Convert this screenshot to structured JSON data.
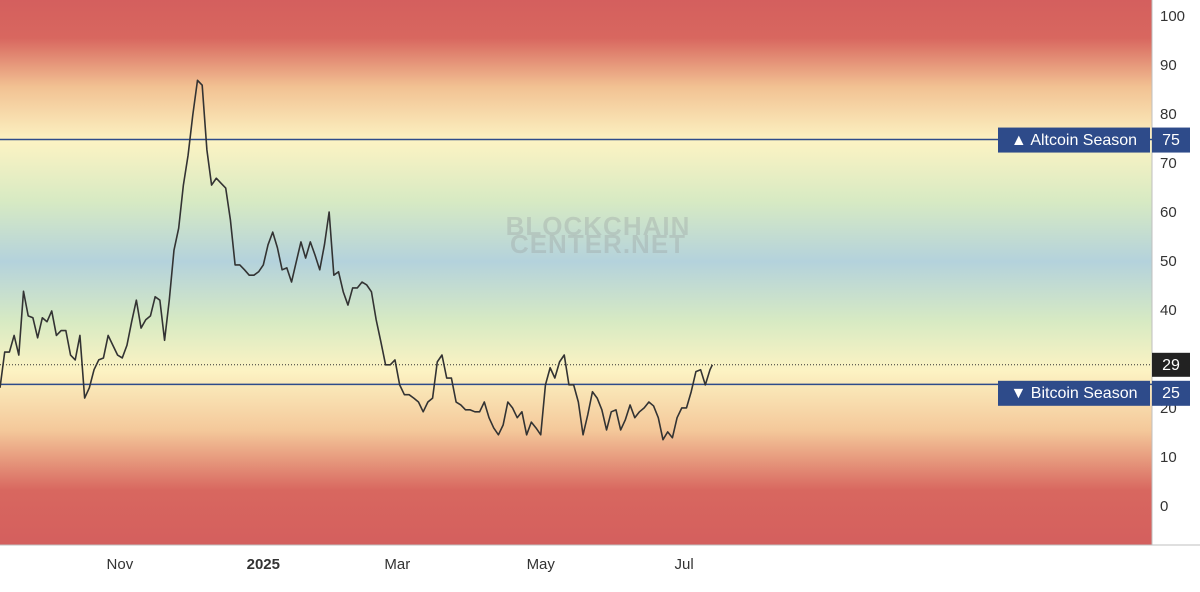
{
  "chart_data": {
    "type": "line",
    "watermark": [
      "BLOCKCHAIN",
      "CENTER.NET"
    ],
    "color": "#333333",
    "x": [
      0,
      2,
      4,
      6,
      8,
      10,
      12,
      14,
      16,
      18,
      20,
      22,
      24,
      26,
      28,
      30,
      32,
      34,
      36,
      38,
      40,
      42,
      44,
      46,
      48,
      50,
      52,
      54,
      56,
      58,
      60,
      62,
      64,
      66,
      68,
      70,
      72,
      74,
      76,
      78,
      80,
      82,
      84,
      86,
      88,
      90,
      92,
      94,
      96,
      98,
      100,
      102,
      104,
      106,
      108,
      110,
      112,
      114,
      116,
      118,
      120,
      122,
      124,
      126,
      128,
      130,
      132,
      134,
      136,
      138,
      140,
      142,
      144,
      146,
      148,
      150,
      152,
      154,
      156,
      158,
      160,
      162,
      164,
      166,
      168,
      170,
      172,
      174,
      176,
      178,
      180,
      182,
      184,
      186,
      188,
      190,
      192,
      194,
      196,
      198,
      200,
      202,
      204,
      206,
      208,
      210,
      212,
      214,
      216,
      218,
      220,
      222,
      224,
      226,
      228,
      230,
      232,
      234,
      236,
      238,
      240,
      242,
      244,
      246,
      248,
      250,
      252,
      254,
      256,
      258,
      260,
      262,
      264,
      266,
      268,
      270,
      272,
      274,
      276,
      278,
      280,
      282,
      284,
      286,
      288,
      290,
      292,
      294,
      296,
      298,
      300,
      302,
      303
    ],
    "values": [
      24.3,
      31.6,
      31.6,
      35,
      31,
      44,
      39,
      38.6,
      34.5,
      38.6,
      37.8,
      40,
      35,
      36,
      36,
      31,
      30,
      35,
      22.2,
      24.3,
      28,
      30,
      30.4,
      35,
      33,
      31,
      30.4,
      33,
      37.8,
      42.2,
      36.5,
      38.2,
      39,
      42.9,
      42.2,
      34,
      42.2,
      52.4,
      56.9,
      65.7,
      71.8,
      80,
      87.1,
      86.1,
      72.9,
      65.7,
      67.1,
      66.1,
      65.1,
      58.6,
      49.4,
      49.4,
      48.4,
      47.3,
      47.3,
      48,
      49.4,
      53.5,
      56.1,
      52.9,
      48.4,
      48.8,
      45.9,
      50,
      54.1,
      50.8,
      54.1,
      51.4,
      48.4,
      53.5,
      60.2,
      47.3,
      48,
      43.9,
      41.2,
      44.7,
      44.7,
      45.9,
      45.3,
      43.9,
      38.2,
      33.7,
      29,
      29,
      30,
      24.9,
      22.9,
      22.9,
      22.2,
      21.4,
      19.4,
      21.4,
      22.2,
      29.6,
      31,
      26.3,
      26.3,
      21.4,
      20.8,
      19.8,
      19.8,
      19.4,
      19.4,
      21.4,
      18.2,
      16.1,
      14.7,
      16.7,
      21.4,
      20.2,
      18.2,
      19.4,
      14.7,
      17.3,
      16.1,
      14.7,
      24.9,
      28.4,
      26.3,
      29.6,
      31,
      24.9,
      24.9,
      21.4,
      14.7,
      18.8,
      23.5,
      22.2,
      19.8,
      15.7,
      19.4,
      19.8,
      15.7,
      17.8,
      20.8,
      18.2,
      19.4,
      20.2,
      21.4,
      20.6,
      18.2,
      13.7,
      15.3,
      14.1,
      18.2,
      20.2,
      20.2,
      23.5,
      27.6,
      28,
      24.9,
      28,
      29
    ],
    "xlim": [
      0,
      490
    ],
    "xticks": [
      {
        "value": 51,
        "label": "Nov"
      },
      {
        "value": 112,
        "label": "2025"
      },
      {
        "value": 169,
        "label": "Mar"
      },
      {
        "value": 230,
        "label": "May"
      },
      {
        "value": 291,
        "label": "Jul"
      }
    ],
    "ylim": [
      -7.8,
      103.5
    ],
    "yticks": [
      0,
      10,
      20,
      30,
      40,
      50,
      60,
      70,
      80,
      90,
      100
    ],
    "grid": false,
    "annotations": [
      {
        "value": 75,
        "label": "▲ Altcoin Season",
        "color": "#2e4b8a"
      },
      {
        "value": 25,
        "label": "▼ Bitcoin Season",
        "color": "#2e4b8a"
      }
    ]
  }
}
